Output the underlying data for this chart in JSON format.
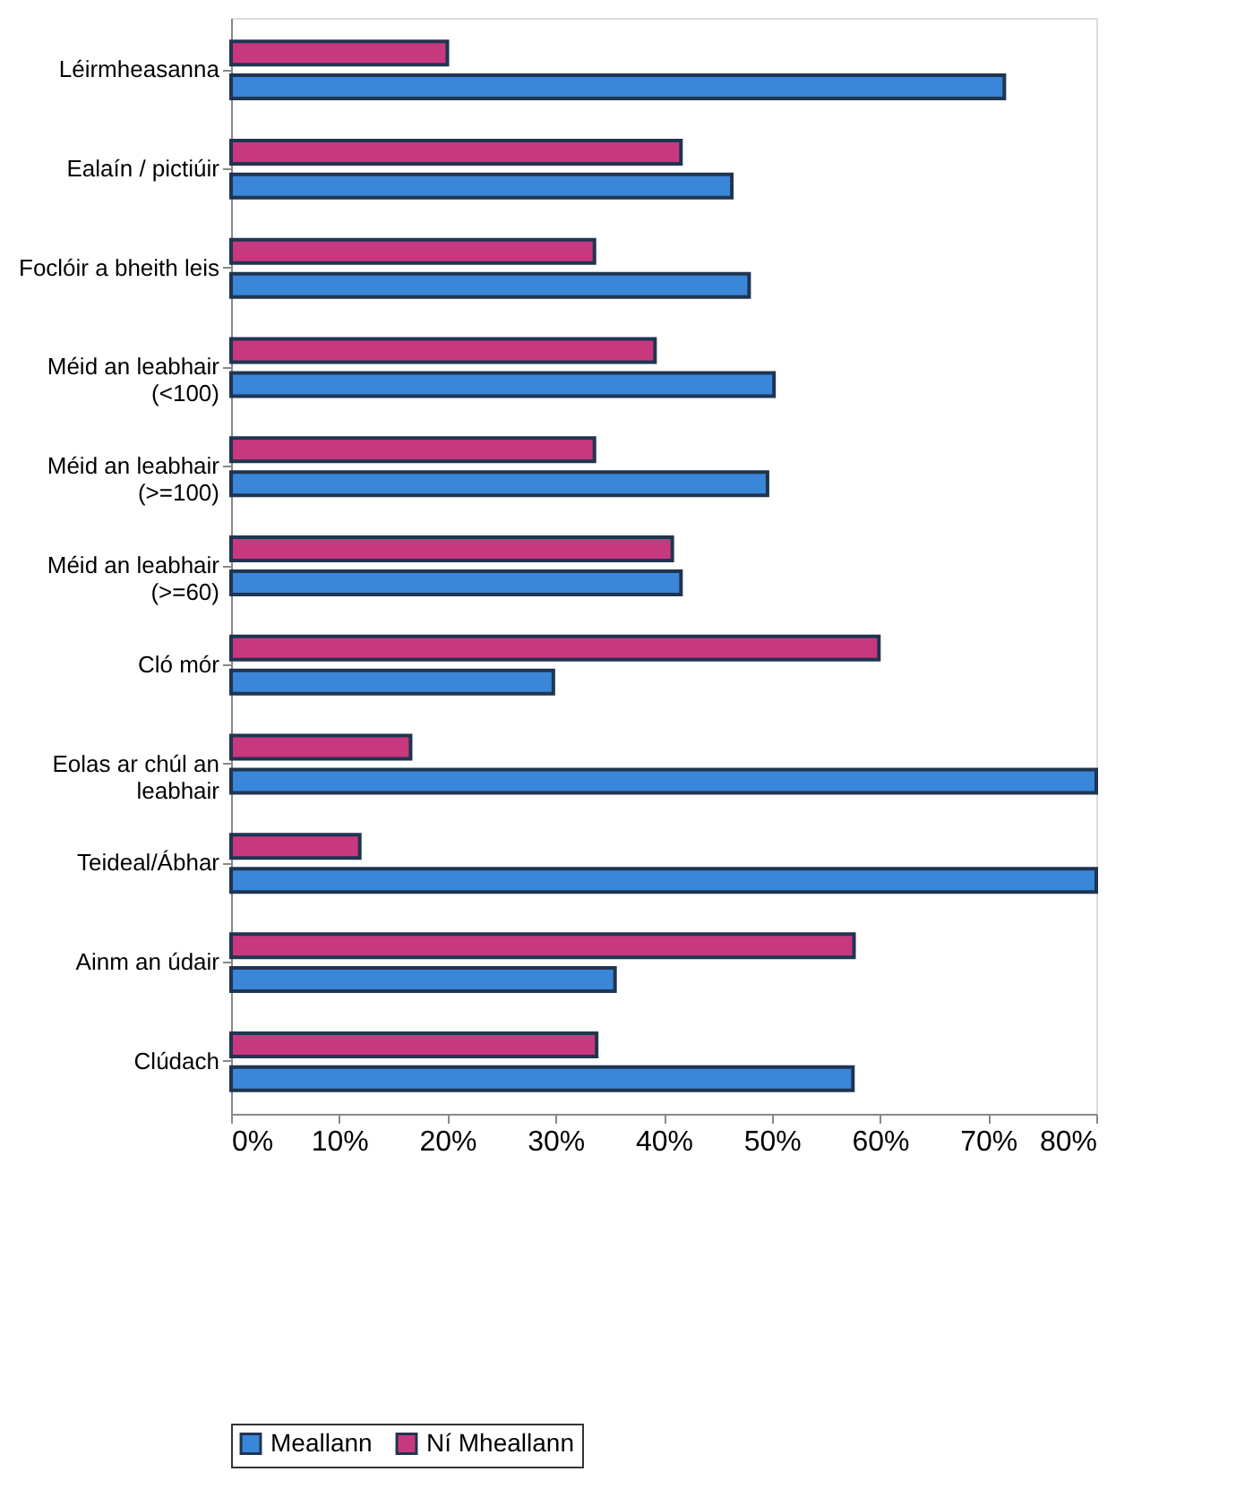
{
  "chart_data": {
    "type": "bar",
    "orientation": "horizontal",
    "categories": [
      "Léirmheasanna",
      "Ealaín / pictiúir",
      "Foclóir a bheith leis",
      "Méid an leabhair (<100)",
      "Méid an leabhair (>=100)",
      "Méid an leabhair (>=60)",
      "Cló mór",
      "Eolas ar chúl an leabhair",
      "Teideal/Ábhar",
      "Ainm an údair",
      "Clúdach"
    ],
    "series": [
      {
        "name": "Ní Mheallann",
        "color": "#c8387f",
        "values": [
          20,
          41.6,
          33.6,
          39.2,
          33.6,
          40.8,
          59.9,
          16.6,
          11.9,
          57.6,
          33.8
        ]
      },
      {
        "name": "Meallann",
        "color": "#3a86d8",
        "values": [
          71.5,
          46.3,
          47.9,
          50.2,
          49.6,
          41.6,
          29.8,
          80,
          80,
          35.5,
          57.5
        ]
      }
    ],
    "xlim": [
      0,
      80
    ],
    "xticks": [
      {
        "value": 0,
        "label": "0%"
      },
      {
        "value": 10,
        "label": "10%"
      },
      {
        "value": 20,
        "label": "20%"
      },
      {
        "value": 30,
        "label": "30%"
      },
      {
        "value": 40,
        "label": "40%"
      },
      {
        "value": 50,
        "label": "50%"
      },
      {
        "value": 60,
        "label": "60%"
      },
      {
        "value": 70,
        "label": "70%"
      },
      {
        "value": 80,
        "label": "80%"
      }
    ],
    "grid": false,
    "legend": "bottom"
  }
}
